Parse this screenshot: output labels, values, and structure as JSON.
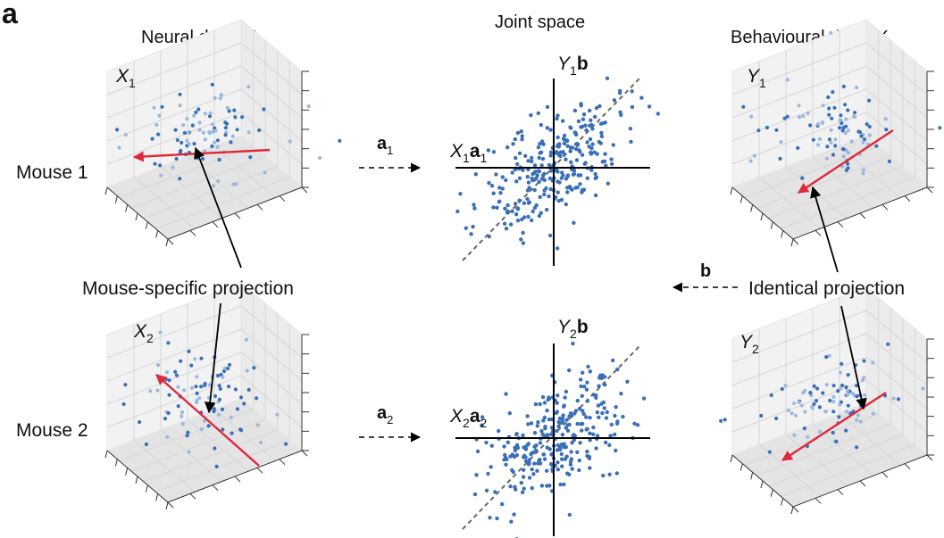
{
  "panel_letter": "a",
  "titles": {
    "neural": {
      "prefix": "Neural data: ",
      "var": "X"
    },
    "joint": "Joint space",
    "behavioural": {
      "prefix": "Behavioural data: ",
      "var": "Y"
    }
  },
  "row_labels": {
    "mouse1": "Mouse 1",
    "mouse2": "Mouse 2"
  },
  "cube_labels": {
    "x1": {
      "base": "X",
      "sub": "1"
    },
    "x2": {
      "base": "X",
      "sub": "2"
    },
    "y1": {
      "base": "Y",
      "sub": "1"
    },
    "y2": {
      "base": "Y",
      "sub": "2"
    }
  },
  "annotations": {
    "mouse_specific": "Mouse-specific projection",
    "identical": "Identical projection"
  },
  "transform_labels": {
    "a1": {
      "base": "a",
      "sub": "1"
    },
    "a2": {
      "base": "a",
      "sub": "2"
    },
    "b": "b"
  },
  "joint_axis_labels": {
    "top_x": {
      "Y": "Y",
      "sub": "1",
      "vec": "b"
    },
    "top_y": {
      "X": "X",
      "sub": "1",
      "vec": "a",
      "vsub": "1"
    },
    "bottom_x": {
      "Y": "Y",
      "sub": "2",
      "vec": "b"
    },
    "bottom_y": {
      "X": "X",
      "sub": "2",
      "vec": "a",
      "vsub": "2"
    }
  },
  "colors": {
    "point": "#3a6fb8",
    "point_light": "#9bb8de",
    "projection": "#e0283a",
    "axis": "#000000",
    "diagonal": "#666666",
    "grid": "#d6d6d6"
  }
}
